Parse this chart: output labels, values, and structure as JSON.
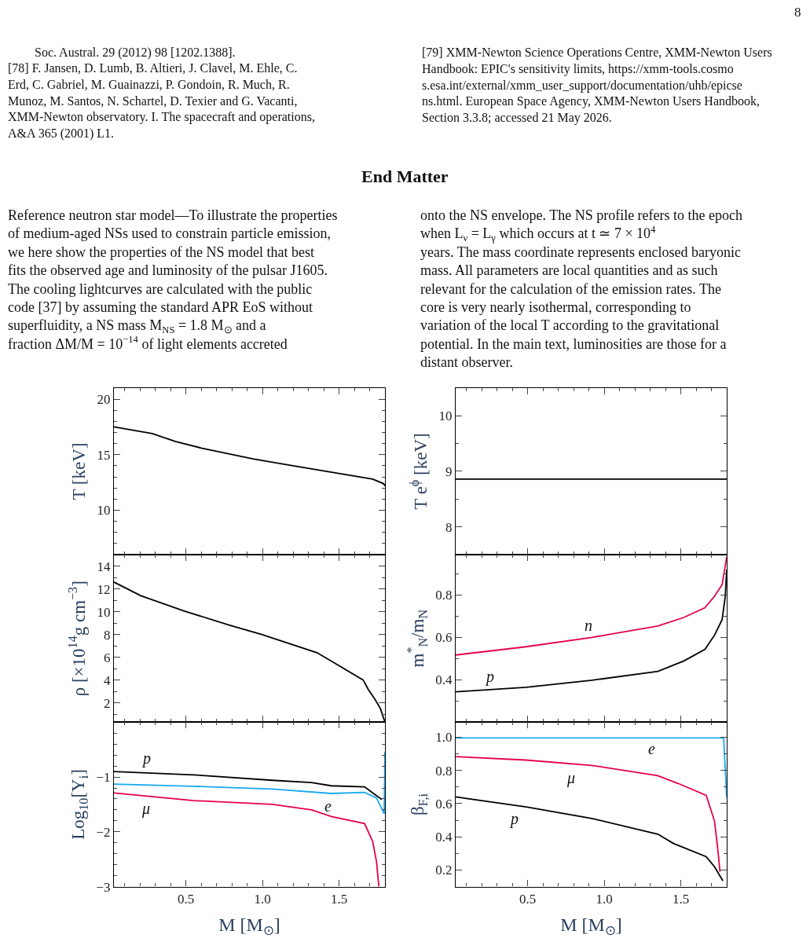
{
  "chart_data": [
    {
      "type": "line",
      "title": "End Matter",
      "annotations": [
        "8",
        "Soc. Austral. 29 (2012) 98 [1202.1388].",
        "[78] F. Jansen, D. Lumb, B. Altieri, J. Clavel, M. Ehle, C. Erd, C. Gabriel, M. Guainazzi, P. Gondoin, R. Much, R. Munoz, M. Santos, N. Schartel, D. Texier and G. Vacanti, XMM-Newton observatory. I. The spacecraft and operations, A&A 365 (2001) L1.",
        "[79] XMM-Newton Science Operations Centre, XMM-Newton Users Handbook: EPIC's sensitivity limits, https://xmm-tools.cosmos.esa.int/external/xmm_user_support/documentation/uhb/epicsens.html. European Space Agency, XMM-Newton Users Handbook, Section 3.3.8; accessed 21 May 2026.",
        "Reference neutron star model—To illustrate the properties of medium-aged NSs used to constrain particle emission, we here show the properties of the NS model that best fits the observed age and luminosity of the pulsar J1605. The cooling lightcurves are calculated with the public code [37] by assuming the standard APR EoS without superfluidity, a NS mass M$_{NS}$ = 1.8 M$_{⊙}$ and a fraction ΔM/M = 10$^{−14}$ of light elements accreted",
        "onto the NS envelope. The NS profile refers to the epoch when L$_{ν}$ = L$_{γ}$ which occurs at t ≃ 7 × 10$^{4}$ years. The mass coordinate represents enclosed baryonic mass. All parameters are local quantities and as such relevant for the calculation of the emission rates. The core is very nearly isothermal, corresponding to variation of the local T according to the gravitational potential. In the main text, luminosities are those for a distant observer."
      ],
      "ylabel": "T [keV]",
      "tick_labels": "y",
      "xlim": [
        0.03,
        1.8
      ],
      "ylim": [
        6,
        21
      ],
      "xticks": [
        {
          "value": 0.1,
          "label": null
        },
        {
          "value": 0.2,
          "label": null
        },
        {
          "value": 0.3,
          "label": null
        },
        {
          "value": 0.4,
          "label": null
        },
        {
          "value": 0.5
        },
        {
          "value": 0.6,
          "label": null
        },
        {
          "value": 0.7,
          "label": null
        },
        {
          "value": 0.8,
          "label": null
        },
        {
          "value": 0.9,
          "label": null
        },
        {
          "value": 1.0
        },
        {
          "value": 1.1,
          "label": null
        },
        {
          "value": 1.2,
          "label": null
        },
        {
          "value": 1.3,
          "label": null
        },
        {
          "value": 1.4,
          "label": null
        },
        {
          "value": 1.5
        },
        {
          "value": 1.6,
          "label": null
        },
        {
          "value": 1.7,
          "label": null
        }
      ],
      "yticks": [
        {
          "value": 7,
          "label": null
        },
        {
          "value": 8,
          "label": null
        },
        {
          "value": 9,
          "label": null
        },
        10,
        {
          "value": 11,
          "label": null
        },
        {
          "value": 12,
          "label": null
        },
        {
          "value": 13,
          "label": null
        },
        {
          "value": 14,
          "label": null
        },
        15,
        {
          "value": 16,
          "label": null
        },
        {
          "value": 17,
          "label": null
        },
        {
          "value": 18,
          "label": null
        },
        {
          "value": 19,
          "label": null
        },
        20
      ],
      "series": [
        {
          "color": "#000000",
          "x": [
            0.03,
            0.28,
            0.43,
            0.6,
            0.945,
            1.2,
            1.46,
            1.72,
            1.79,
            1.8
          ],
          "values": [
            17.5,
            16.9,
            16.2,
            15.6,
            14.6,
            14.0,
            13.4,
            12.8,
            12.4,
            12.2
          ]
        }
      ]
    },
    {
      "type": "line",
      "ylabel": "T e$^{ϕ}$ [keV]",
      "tick_labels": "y",
      "xlim": [
        0.03,
        1.8
      ],
      "ylim": [
        7.5,
        10.5
      ],
      "xticks": [
        {
          "value": 0.1,
          "label": null
        },
        {
          "value": 0.2,
          "label": null
        },
        {
          "value": 0.3,
          "label": null
        },
        {
          "value": 0.4,
          "label": null
        },
        {
          "value": 0.5
        },
        {
          "value": 0.6,
          "label": null
        },
        {
          "value": 0.7,
          "label": null
        },
        {
          "value": 0.8,
          "label": null
        },
        {
          "value": 0.9,
          "label": null
        },
        {
          "value": 1.0
        },
        {
          "value": 1.1,
          "label": null
        },
        {
          "value": 1.2,
          "label": null
        },
        {
          "value": 1.3,
          "label": null
        },
        {
          "value": 1.4,
          "label": null
        },
        {
          "value": 1.5
        },
        {
          "value": 1.6,
          "label": null
        },
        {
          "value": 1.7,
          "label": null
        }
      ],
      "yticks": [
        8,
        {
          "value": 8.5,
          "label": null
        },
        9,
        {
          "value": 9.5,
          "label": null
        },
        10
      ],
      "series": [
        {
          "color": "#000000",
          "x": [
            0.03,
            1.8
          ],
          "values": [
            8.86,
            8.86
          ]
        }
      ]
    },
    {
      "type": "line",
      "ylabel": "ρ [×10$^{14}$g cm$^{−3}$]",
      "tick_labels": "y",
      "xlim": [
        0.03,
        1.8
      ],
      "ylim": [
        0.3,
        15
      ],
      "xticks": [
        {
          "value": 0.1,
          "label": null
        },
        {
          "value": 0.2,
          "label": null
        },
        {
          "value": 0.3,
          "label": null
        },
        {
          "value": 0.4,
          "label": null
        },
        {
          "value": 0.5
        },
        {
          "value": 0.6,
          "label": null
        },
        {
          "value": 0.7,
          "label": null
        },
        {
          "value": 0.8,
          "label": null
        },
        {
          "value": 0.9,
          "label": null
        },
        {
          "value": 1.0
        },
        {
          "value": 1.1,
          "label": null
        },
        {
          "value": 1.2,
          "label": null
        },
        {
          "value": 1.3,
          "label": null
        },
        {
          "value": 1.4,
          "label": null
        },
        {
          "value": 1.5
        },
        {
          "value": 1.6,
          "label": null
        },
        {
          "value": 1.7,
          "label": null
        }
      ],
      "yticks": [
        {
          "value": 1,
          "label": null
        },
        2,
        {
          "value": 3,
          "label": null
        },
        4,
        {
          "value": 5,
          "label": null
        },
        6,
        {
          "value": 7,
          "label": null
        },
        8,
        {
          "value": 9,
          "label": null
        },
        10,
        {
          "value": 11,
          "label": null
        },
        12,
        {
          "value": 13,
          "label": null
        },
        14
      ],
      "series": [
        {
          "color": "#000000",
          "x": [
            0.03,
            0.206,
            0.49,
            0.79,
            0.995,
            1.356,
            1.495,
            1.658,
            1.69,
            1.735,
            1.77,
            1.8
          ],
          "values": [
            12.6,
            11.4,
            10.05,
            8.8,
            8.0,
            6.4,
            5.3,
            4.0,
            3.2,
            2.3,
            1.5,
            0.3
          ]
        }
      ]
    },
    {
      "type": "line",
      "ylabel": "m$^{*}$$_{N}$/m$_{N}$",
      "tick_labels": "y",
      "xlim": [
        0.03,
        1.8
      ],
      "ylim": [
        0.2,
        0.99
      ],
      "xticks": [
        {
          "value": 0.1,
          "label": null
        },
        {
          "value": 0.2,
          "label": null
        },
        {
          "value": 0.3,
          "label": null
        },
        {
          "value": 0.4,
          "label": null
        },
        {
          "value": 0.5
        },
        {
          "value": 0.6,
          "label": null
        },
        {
          "value": 0.7,
          "label": null
        },
        {
          "value": 0.8,
          "label": null
        },
        {
          "value": 0.9,
          "label": null
        },
        {
          "value": 1.0
        },
        {
          "value": 1.1,
          "label": null
        },
        {
          "value": 1.2,
          "label": null
        },
        {
          "value": 1.3,
          "label": null
        },
        {
          "value": 1.4,
          "label": null
        },
        {
          "value": 1.5
        },
        {
          "value": 1.6,
          "label": null
        },
        {
          "value": 1.7,
          "label": null
        }
      ],
      "yticks": [
        {
          "value": 0.3,
          "label": null
        },
        0.4,
        {
          "value": 0.5,
          "label": null
        },
        0.6,
        {
          "value": 0.7,
          "label": null
        },
        0.8,
        {
          "value": 0.9,
          "label": null
        }
      ],
      "series": [
        {
          "name": "n",
          "color": "#e6004c",
          "x": [
            0.03,
            0.49,
            0.92,
            1.35,
            1.52,
            1.658,
            1.72,
            1.77,
            1.8
          ],
          "values": [
            0.517,
            0.556,
            0.6,
            0.654,
            0.694,
            0.74,
            0.794,
            0.849,
            0.98
          ]
        },
        {
          "name": "p",
          "color": "#000000",
          "x": [
            0.03,
            0.49,
            0.92,
            1.35,
            1.52,
            1.658,
            1.72,
            1.77,
            1.79,
            1.8
          ],
          "values": [
            0.343,
            0.365,
            0.398,
            0.44,
            0.489,
            0.544,
            0.61,
            0.684,
            0.79,
            0.92
          ]
        }
      ]
    },
    {
      "type": "line",
      "ylabel": "Log$_{10}$[Y$_{i}$]",
      "xlabel": "M [M$_{⊙}$]",
      "xlim": [
        0.03,
        1.8
      ],
      "ylim": [
        -3,
        0
      ],
      "xticks": [
        {
          "value": 0.1,
          "label": null
        },
        {
          "value": 0.2,
          "label": null
        },
        {
          "value": 0.3,
          "label": null
        },
        {
          "value": 0.4,
          "label": null
        },
        {
          "value": 0.5,
          "label": "0.5"
        },
        {
          "value": 0.6,
          "label": null
        },
        {
          "value": 0.7,
          "label": null
        },
        {
          "value": 0.8,
          "label": null
        },
        {
          "value": 0.9,
          "label": null
        },
        {
          "value": 1.0,
          "label": "1.0"
        },
        {
          "value": 1.1,
          "label": null
        },
        {
          "value": 1.2,
          "label": null
        },
        {
          "value": 1.3,
          "label": null
        },
        {
          "value": 1.4,
          "label": null
        },
        {
          "value": 1.5,
          "label": "1.5"
        },
        {
          "value": 1.6,
          "label": null
        },
        {
          "value": 1.7,
          "label": null
        }
      ],
      "yticks": [
        {
          "value": -3,
          "label": "−3"
        },
        {
          "value": -2.8,
          "label": null
        },
        {
          "value": -2.6,
          "label": null
        },
        {
          "value": -2.4,
          "label": null
        },
        {
          "value": -2.2,
          "label": null
        },
        {
          "value": -2,
          "label": "−2"
        },
        {
          "value": -1.8,
          "label": null
        },
        {
          "value": -1.6,
          "label": null
        },
        {
          "value": -1.4,
          "label": null
        },
        {
          "value": -1.2,
          "label": null
        },
        {
          "value": -1,
          "label": "−1"
        },
        {
          "value": -0.8,
          "label": null
        },
        {
          "value": -0.6,
          "label": null
        },
        {
          "value": -0.4,
          "label": null
        },
        {
          "value": -0.2,
          "label": null
        }
      ],
      "series": [
        {
          "name": "p",
          "color": "#000000",
          "x": [
            0.03,
            0.55,
            1.065,
            1.32,
            1.45,
            1.667,
            1.744,
            1.78
          ],
          "values": [
            -0.9,
            -0.96,
            -1.06,
            -1.1,
            -1.16,
            -1.18,
            -1.34,
            -1.41
          ]
        },
        {
          "name": "e",
          "color": "#17a9f0",
          "x": [
            0.03,
            0.55,
            1.065,
            1.45,
            1.667,
            1.744,
            1.795,
            1.8
          ],
          "values": [
            -1.13,
            -1.17,
            -1.22,
            -1.3,
            -1.28,
            -1.38,
            -1.67,
            -0.54
          ]
        },
        {
          "name": "μ",
          "color": "#e6004c",
          "x": [
            0.03,
            0.55,
            1.065,
            1.32,
            1.45,
            1.667,
            1.72,
            1.745,
            1.76
          ],
          "values": [
            -1.29,
            -1.43,
            -1.5,
            -1.6,
            -1.72,
            -1.85,
            -2.18,
            -2.55,
            -3.0
          ]
        }
      ]
    },
    {
      "type": "line",
      "ylabel": "β$_{F,i}$",
      "xlabel": "M [M$_{⊙}$]",
      "xlim": [
        0.03,
        1.8
      ],
      "ylim": [
        0.1,
        1.09
      ],
      "xticks": [
        {
          "value": 0.1,
          "label": null
        },
        {
          "value": 0.2,
          "label": null
        },
        {
          "value": 0.3,
          "label": null
        },
        {
          "value": 0.4,
          "label": null
        },
        {
          "value": 0.5,
          "label": "0.5"
        },
        {
          "value": 0.6,
          "label": null
        },
        {
          "value": 0.7,
          "label": null
        },
        {
          "value": 0.8,
          "label": null
        },
        {
          "value": 0.9,
          "label": null
        },
        {
          "value": 1.0,
          "label": "1.0"
        },
        {
          "value": 1.1,
          "label": null
        },
        {
          "value": 1.2,
          "label": null
        },
        {
          "value": 1.3,
          "label": null
        },
        {
          "value": 1.4,
          "label": null
        },
        {
          "value": 1.5,
          "label": "1.5"
        },
        {
          "value": 1.6,
          "label": null
        },
        {
          "value": 1.7,
          "label": null
        }
      ],
      "yticks": [
        0.2,
        {
          "value": 0.3,
          "label": null
        },
        0.4,
        {
          "value": 0.5,
          "label": null
        },
        0.6,
        {
          "value": 0.7,
          "label": null
        },
        0.8,
        {
          "value": 0.9,
          "label": null
        },
        {
          "value": 1.0,
          "label": "1.0"
        }
      ],
      "series": [
        {
          "name": "e",
          "color": "#17a9f0",
          "x": [
            0.03,
            1.78,
            1.8
          ],
          "values": [
            0.995,
            0.995,
            0.635
          ]
        },
        {
          "name": "μ",
          "color": "#e6004c",
          "x": [
            0.03,
            0.49,
            0.92,
            1.35,
            1.486,
            1.666,
            1.72,
            1.74,
            1.756
          ],
          "values": [
            0.883,
            0.862,
            0.83,
            0.768,
            0.72,
            0.65,
            0.495,
            0.34,
            0.19
          ]
        },
        {
          "name": "p",
          "color": "#000000",
          "x": [
            0.03,
            0.49,
            0.92,
            1.35,
            1.452,
            1.666,
            1.72,
            1.775
          ],
          "values": [
            0.64,
            0.58,
            0.51,
            0.416,
            0.36,
            0.28,
            0.22,
            0.135
          ]
        }
      ]
    }
  ]
}
